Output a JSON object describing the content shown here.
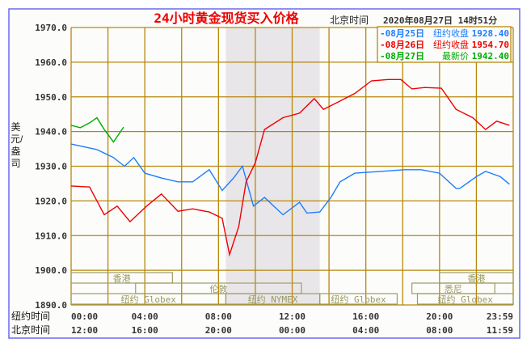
{
  "chart_data": {
    "type": "line",
    "title": "24小时黄金现货买入价格",
    "timestamp_label": "北京时间",
    "timestamp": "2020年08月27日 14时51分",
    "ylabel": "美元/盎司",
    "ylim": [
      1890,
      1970
    ],
    "yticks": [
      "1970.0",
      "1960.0",
      "1950.0",
      "1940.0",
      "1930.0",
      "1920.0",
      "1910.0",
      "1900.0",
      "1890.0"
    ],
    "xlim_hours": [
      0,
      24
    ],
    "x_rows": [
      {
        "label": "纽约时间",
        "ticks": [
          "00:00",
          "04:00",
          "08:00",
          "12:00",
          "16:00",
          "20:00",
          "23:59"
        ]
      },
      {
        "label": "北京时间",
        "ticks": [
          "12:00",
          "16:00",
          "20:00",
          "00:00",
          "04:00",
          "08:00",
          "11:59"
        ]
      }
    ],
    "shaded_hours": [
      8.4,
      13.5
    ],
    "sessions": [
      {
        "name": "香港",
        "row": 0,
        "start": 0,
        "end": 5.5
      },
      {
        "name": "香港",
        "row": 0,
        "start": 20,
        "end": 24
      },
      {
        "name": "伦敦",
        "row": 1,
        "start": 3.5,
        "end": 12.5
      },
      {
        "name": "悉尼",
        "row": 1,
        "start": 18.5,
        "end": 23
      },
      {
        "name": "纽约 Globex",
        "row": 2,
        "start": 0,
        "end": 8.4
      },
      {
        "name": "纽约 NYMEX",
        "row": 2,
        "start": 8.4,
        "end": 13.5
      },
      {
        "name": "纽约 Globex",
        "row": 2,
        "start": 13.5,
        "end": 17.7
      },
      {
        "name": "纽约 Globex",
        "row": 2,
        "start": 18.8,
        "end": 24
      }
    ],
    "series": [
      {
        "name": "08月25日",
        "kind": "纽约收盘",
        "value": "1928.40",
        "color": "#1e7dff",
        "x": [
          0,
          1.4,
          2.3,
          2.9,
          3.4,
          4,
          4.9,
          5.8,
          6.6,
          7.5,
          8.2,
          8.8,
          9.3,
          9.9,
          10.5,
          11.5,
          12.4,
          12.8,
          13.5,
          14.1,
          14.6,
          15.4,
          16.8,
          18.1,
          19,
          20,
          20.9,
          21.1,
          22,
          22.5,
          23.3,
          23.8
        ],
        "y": [
          1936.4,
          1934.8,
          1932.5,
          1930,
          1932.5,
          1928,
          1926.6,
          1925.5,
          1925.5,
          1929,
          1923,
          1926.5,
          1930,
          1918.5,
          1921,
          1916,
          1919.6,
          1916.5,
          1916.8,
          1921,
          1925.5,
          1928,
          1928.5,
          1929,
          1929,
          1928,
          1923.6,
          1923.6,
          1927,
          1928.5,
          1927,
          1924.8
        ]
      },
      {
        "name": "08月26日",
        "kind": "纽约收盘",
        "value": "1954.70",
        "color": "#ee0000",
        "x": [
          0,
          1,
          1.8,
          2.5,
          3.2,
          4.1,
          4.9,
          5.8,
          6.6,
          7.5,
          8.2,
          8.6,
          9.1,
          9.5,
          10,
          10.5,
          11.5,
          12.4,
          13.2,
          13.7,
          14.6,
          15.4,
          16.3,
          17.2,
          17.9,
          18.5,
          19.2,
          20.1,
          20.9,
          21.8,
          22.5,
          23.1,
          23.8
        ],
        "y": [
          1924.3,
          1924,
          1916,
          1918.5,
          1914,
          1918.5,
          1922,
          1917,
          1917.7,
          1916.8,
          1915,
          1904.5,
          1912.6,
          1925.5,
          1931,
          1940.6,
          1944,
          1945.3,
          1949.5,
          1946.4,
          1948.8,
          1951,
          1954.6,
          1955,
          1955,
          1952.3,
          1952.7,
          1952.5,
          1946.4,
          1944,
          1940.6,
          1943,
          1941.8
        ]
      },
      {
        "name": "08月27日",
        "kind": "最新价",
        "value": "1942.40",
        "color": "#00aa00",
        "x": [
          0,
          0.5,
          1,
          1.4,
          1.8,
          2.3,
          2.85
        ],
        "y": [
          1941.8,
          1941.1,
          1942.5,
          1944,
          1940.6,
          1937,
          1941.3
        ]
      }
    ]
  }
}
